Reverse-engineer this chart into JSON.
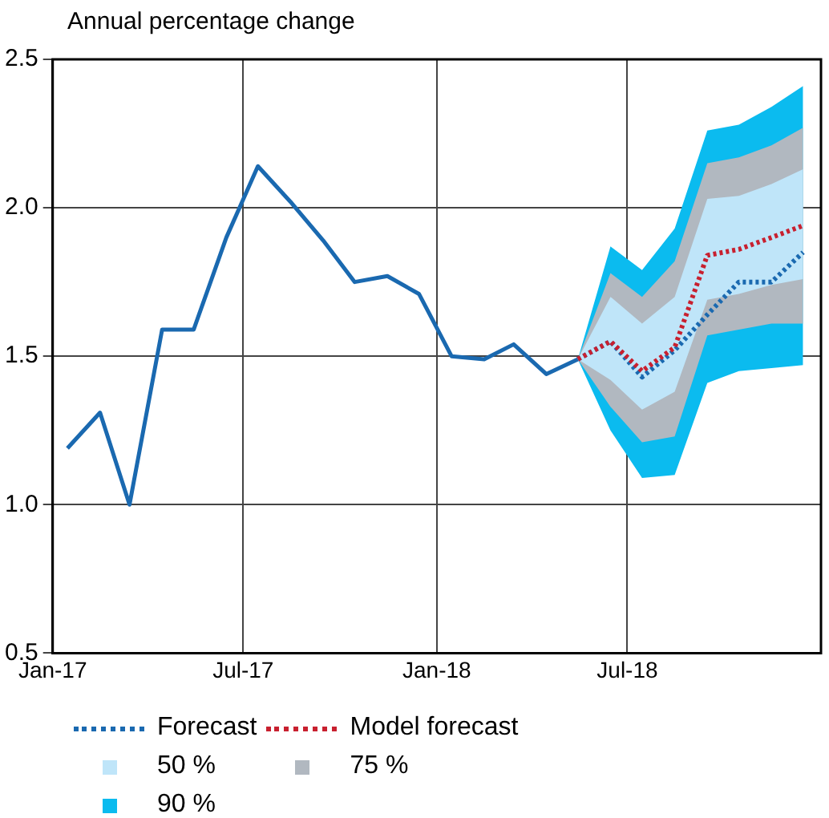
{
  "chart_data": {
    "type": "line",
    "ylabel": "Annual percentage change",
    "xlim": [
      "2017-01",
      "2019-01"
    ],
    "xticks": [
      {
        "value": "2017-01",
        "label": "Jan-17"
      },
      {
        "value": "2017-07",
        "label": "Jul-17"
      },
      {
        "value": "2018-01",
        "label": "Jan-18"
      },
      {
        "value": "2018-07",
        "label": "Jul-18"
      }
    ],
    "ylim": [
      0.5,
      2.5
    ],
    "yticks": [
      0.5,
      {
        "value": 1,
        "label": "1.0"
      },
      1.5,
      {
        "value": 2,
        "label": "2.0"
      },
      2.5
    ],
    "grid": true,
    "legend": "bottom",
    "series": [
      {
        "name": "90 %",
        "type": "area",
        "color": "#0bbbef",
        "x": [
          "2018-05-15",
          "2018-06-15",
          "2018-07-15",
          "2018-08-15",
          "2018-09-15",
          "2018-10-15",
          "2018-11-15",
          "2018-12-15"
        ],
        "values": [
          null,
          null,
          null,
          null,
          null,
          null,
          null,
          null
        ],
        "lower": [
          1.49,
          1.25,
          1.09,
          1.1,
          1.41,
          1.45,
          1.46,
          1.47
        ],
        "upper": [
          1.49,
          1.87,
          1.79,
          1.93,
          2.26,
          2.28,
          2.34,
          2.41
        ]
      },
      {
        "name": "75 %",
        "type": "area",
        "color": "#b1b8c0",
        "x": [
          "2018-05-15",
          "2018-06-15",
          "2018-07-15",
          "2018-08-15",
          "2018-09-15",
          "2018-10-15",
          "2018-11-15",
          "2018-12-15"
        ],
        "values": [
          null,
          null,
          null,
          null,
          null,
          null,
          null,
          null
        ],
        "lower": [
          1.49,
          1.33,
          1.21,
          1.23,
          1.57,
          1.59,
          1.61,
          1.61
        ],
        "upper": [
          1.49,
          1.78,
          1.7,
          1.82,
          2.15,
          2.17,
          2.21,
          2.27
        ]
      },
      {
        "name": "50 %",
        "type": "area",
        "color": "#bfe5f9",
        "x": [
          "2018-05-15",
          "2018-06-15",
          "2018-07-15",
          "2018-08-15",
          "2018-09-15",
          "2018-10-15",
          "2018-11-15",
          "2018-12-15"
        ],
        "values": [
          null,
          null,
          null,
          null,
          null,
          null,
          null,
          null
        ],
        "lower": [
          1.49,
          1.42,
          1.32,
          1.38,
          1.69,
          1.71,
          1.74,
          1.76
        ],
        "upper": [
          1.49,
          1.7,
          1.61,
          1.7,
          2.03,
          2.04,
          2.08,
          2.13
        ]
      },
      {
        "type": "line",
        "color": "#1a69b0",
        "line_style": "solid",
        "x": [
          "2017-01-15",
          "2017-02-15",
          "2017-03-15",
          "2017-04-15",
          "2017-05-15",
          "2017-06-15",
          "2017-07-15",
          "2017-08-15",
          "2017-09-15",
          "2017-10-15",
          "2017-11-15",
          "2017-12-15",
          "2018-01-15",
          "2018-02-15",
          "2018-03-15",
          "2018-04-15",
          "2018-05-15"
        ],
        "values": [
          1.19,
          1.31,
          1.0,
          1.59,
          1.59,
          1.9,
          2.14,
          2.02,
          1.89,
          1.75,
          1.77,
          1.71,
          1.5,
          1.49,
          1.54,
          1.44,
          1.49
        ]
      },
      {
        "name": "Forecast",
        "type": "line",
        "color": "#1a69b0",
        "line_style": "dotted",
        "x": [
          "2018-05-15",
          "2018-06-15",
          "2018-07-15",
          "2018-08-15",
          "2018-09-15",
          "2018-10-15",
          "2018-11-15",
          "2018-12-15"
        ],
        "values": [
          1.49,
          1.55,
          1.43,
          1.52,
          1.64,
          1.75,
          1.75,
          1.85
        ]
      },
      {
        "name": "Model forecast",
        "type": "line",
        "color": "#c8202f",
        "line_style": "dotted",
        "x": [
          "2018-05-15",
          "2018-06-15",
          "2018-07-15",
          "2018-08-15",
          "2018-09-15",
          "2018-10-15",
          "2018-11-15",
          "2018-12-15"
        ],
        "values": [
          1.49,
          1.55,
          1.45,
          1.53,
          1.84,
          1.86,
          1.9,
          1.94
        ]
      }
    ]
  }
}
